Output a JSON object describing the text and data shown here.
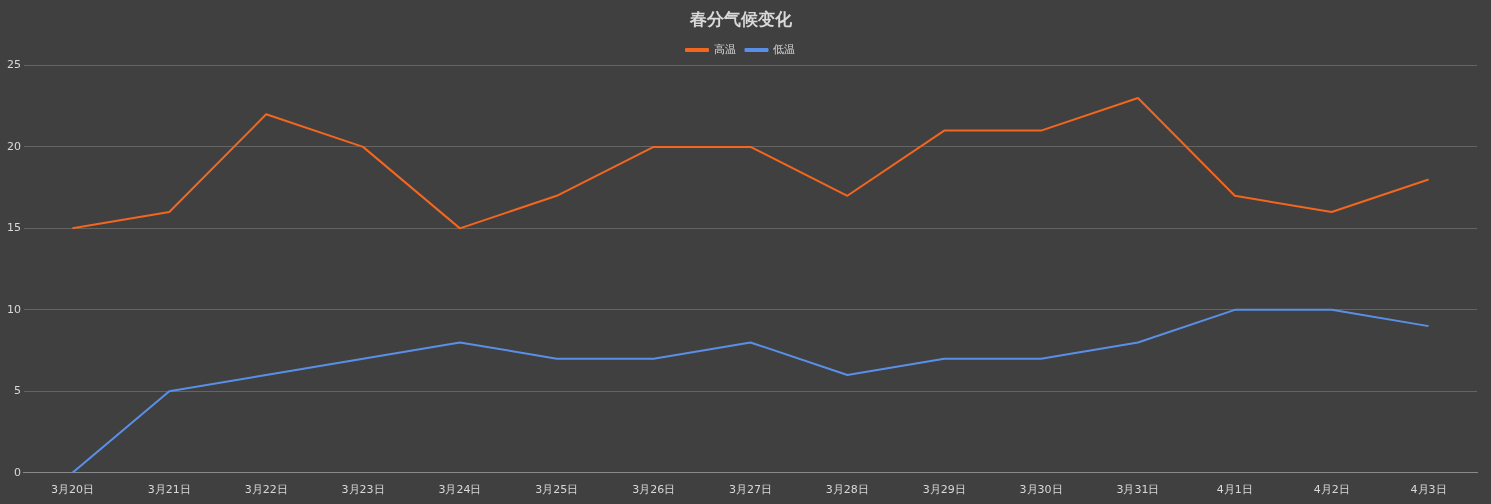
{
  "chart_data": {
    "type": "line",
    "title": "春分气候变化",
    "categories": [
      "3月20日",
      "3月21日",
      "3月22日",
      "3月23日",
      "3月24日",
      "3月25日",
      "3月26日",
      "3月27日",
      "3月28日",
      "3月29日",
      "3月30日",
      "3月31日",
      "4月1日",
      "4月2日",
      "4月3日"
    ],
    "series": [
      {
        "name": "高温",
        "color": "#f2661f",
        "values": [
          15,
          16,
          22,
          20,
          15,
          17,
          20,
          20,
          17,
          21,
          21,
          23,
          17,
          16,
          18
        ]
      },
      {
        "name": "低温",
        "color": "#5a8fe8",
        "values": [
          0,
          5,
          6,
          7,
          8,
          7,
          7,
          8,
          6,
          7,
          7,
          8,
          10,
          10,
          9
        ]
      }
    ],
    "ylim": [
      0,
      25
    ],
    "yticks": [
      0,
      5,
      10,
      15,
      20,
      25
    ],
    "grid": "y",
    "legend": "top",
    "marker": "none",
    "line_style": "solid"
  }
}
